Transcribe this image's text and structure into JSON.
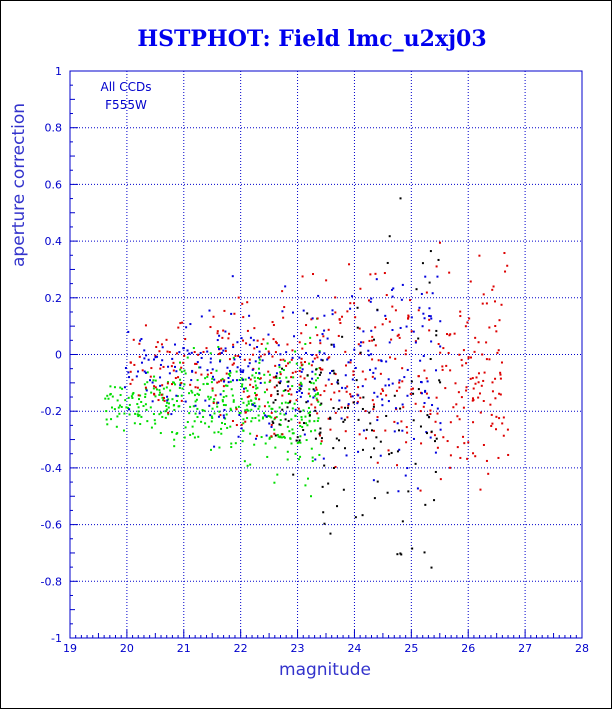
{
  "chart_data": {
    "type": "scatter",
    "title": "HSTPHOT: Field lmc_u2xj03",
    "xlabel": "magnitude",
    "ylabel": "aperture correction",
    "xlim": [
      19,
      28
    ],
    "ylim": [
      -1,
      1
    ],
    "xticks": [
      "19",
      "20",
      "21",
      "22",
      "23",
      "24",
      "25",
      "26",
      "27",
      "28"
    ],
    "yticks": [
      "-1",
      "-0.8",
      "-0.6",
      "-0.4",
      "-0.2",
      "0",
      "0.2",
      "0.4",
      "0.6",
      "0.8",
      "1"
    ],
    "grid": true,
    "grid_style": "dotted",
    "annotations": [
      "All CCDs",
      "F555W"
    ],
    "colors": {
      "axis": "#0000cc",
      "grid": "#0000cc",
      "title": "#0000ee"
    },
    "series": [
      {
        "color": "#00dd00",
        "x_range": [
          19.6,
          23.4
        ],
        "y_center": -0.17,
        "y_spread": 0.12,
        "count": 420
      },
      {
        "color": "#dd0000",
        "x_range": [
          20.0,
          26.7
        ],
        "y_center": -0.05,
        "y_spread": 0.2,
        "count": 480
      },
      {
        "color": "#0000dd",
        "x_range": [
          19.9,
          25.5
        ],
        "y_center": -0.05,
        "y_spread": 0.2,
        "count": 300
      },
      {
        "color": "#000000",
        "x_range": [
          22.5,
          25.5
        ],
        "y_center": -0.2,
        "y_spread": 0.3,
        "count": 140
      }
    ]
  }
}
